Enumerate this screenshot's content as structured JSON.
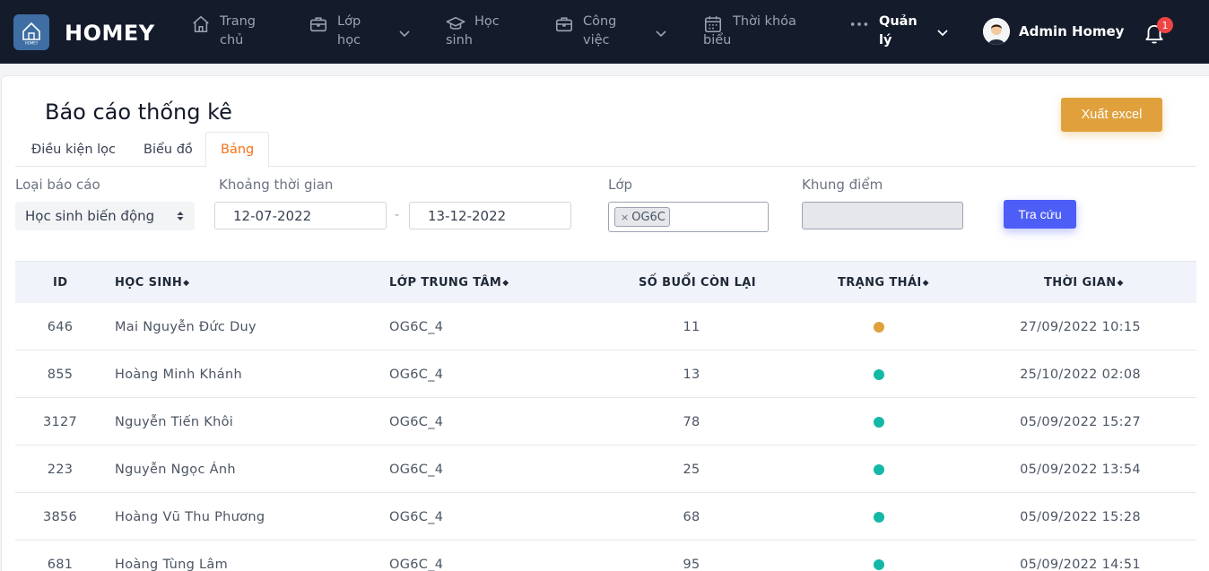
{
  "brand": {
    "name": "HOMEY",
    "logo_text": "HOMEY"
  },
  "nav": {
    "items": [
      {
        "label": "Trang\nchủ",
        "icon": "home-icon"
      },
      {
        "label": "Lớp\nhọc",
        "icon": "briefcase-icon",
        "has_dropdown": true
      },
      {
        "label": "Học\nsinh",
        "icon": "graduation-cap-icon"
      },
      {
        "label": "Công\nviệc",
        "icon": "briefcase-icon",
        "has_dropdown": true
      },
      {
        "label": "Thời khóa\nbiểu",
        "icon": "calendar-icon"
      },
      {
        "label": "Quản\nlý",
        "icon": "more-dots-icon",
        "has_dropdown": true
      }
    ],
    "user_name": "Admin Homey",
    "notification_count": "1"
  },
  "page": {
    "title": "Báo cáo thống kê",
    "export_label": "Xuất excel",
    "tabs": [
      {
        "label": "Điều kiện lọc"
      },
      {
        "label": "Biểu đồ"
      },
      {
        "label": "Bảng",
        "active": true
      }
    ]
  },
  "filters": {
    "report_type_label": "Loại báo cáo",
    "report_type_value": "Học sinh biến động",
    "time_range_label": "Khoảng thời gian",
    "date_from": "12-07-2022",
    "date_separator": "-",
    "date_to": "13-12-2022",
    "class_label": "Lớp",
    "class_chip": "OG6C",
    "class_chip_remove": "×",
    "score_label": "Khung điểm",
    "search_label": "Tra cứu"
  },
  "table": {
    "columns": [
      {
        "label": "ID",
        "sortable": false
      },
      {
        "label": "HỌC SINH",
        "sortable": true
      },
      {
        "label": "LỚP TRUNG TÂM",
        "sortable": true
      },
      {
        "label": "SỐ BUỔI CÒN LẠI",
        "sortable": false
      },
      {
        "label": "TRẠNG THÁI",
        "sortable": true
      },
      {
        "label": "THỜI GIAN",
        "sortable": true
      }
    ],
    "sort_glyph": "◆",
    "status_colors": {
      "warning": "#e0a13c",
      "active": "#14b8a6"
    },
    "rows": [
      {
        "id": "646",
        "student": "Mai Nguyễn Đức Duy",
        "class": "OG6C_4",
        "remaining": "11",
        "status": "warning",
        "time": "27/09/2022 10:15"
      },
      {
        "id": "855",
        "student": "Hoàng Minh Khánh",
        "class": "OG6C_4",
        "remaining": "13",
        "status": "active",
        "time": "25/10/2022 02:08"
      },
      {
        "id": "3127",
        "student": "Nguyễn Tiến Khôi",
        "class": "OG6C_4",
        "remaining": "78",
        "status": "active",
        "time": "05/09/2022 15:27"
      },
      {
        "id": "223",
        "student": "Nguyễn Ngọc Ánh",
        "class": "OG6C_4",
        "remaining": "25",
        "status": "active",
        "time": "05/09/2022 13:54"
      },
      {
        "id": "3856",
        "student": "Hoàng Vũ Thu Phương",
        "class": "OG6C_4",
        "remaining": "68",
        "status": "active",
        "time": "05/09/2022 15:28"
      },
      {
        "id": "681",
        "student": "Hoàng Tùng Lâm",
        "class": "OG6C_4",
        "remaining": "95",
        "status": "active",
        "time": "05/09/2022 14:51"
      }
    ]
  }
}
